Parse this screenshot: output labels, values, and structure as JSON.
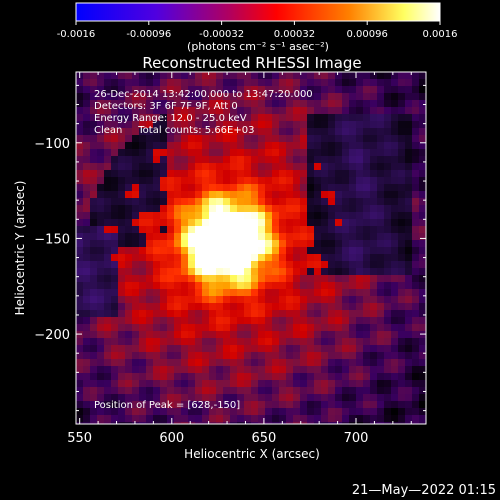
{
  "colorbar": {
    "ticks": [
      "-0.0016",
      "-0.00096",
      "-0.00032",
      "0.00032",
      "0.00096",
      "0.0016"
    ],
    "units": "(photons cm⁻² s⁻¹ asec⁻²)",
    "range": [
      -0.0016,
      0.0016
    ],
    "colors": [
      "#0000ff",
      "#6a00d0",
      "#ff0000",
      "#ff8800",
      "#ffff70",
      "#ffffff"
    ]
  },
  "chart_data": {
    "type": "heatmap",
    "title": "Reconstructed RHESSI Image",
    "xlabel": "Heliocentric X (arcsec)",
    "ylabel": "Heliocentric Y (arcsec)",
    "xlim": [
      548,
      738
    ],
    "ylim": [
      -247,
      -63
    ],
    "xticks": [
      550,
      600,
      650,
      700
    ],
    "yticks": [
      -100,
      -150,
      -200
    ],
    "info_lines": [
      "26-Dec-2014 13:42:00.000 to 13:47:20.000",
      "Detectors: 3F 6F 7F 9F, Att 0",
      "Energy Range: 12.0 - 25.0 keV",
      "Clean     Total counts: 5.66E+03"
    ],
    "peak_label": "Position of Peak = [628,-150]",
    "peak": [
      628,
      -150
    ]
  },
  "footer": {
    "date": "21—May—2022 01:15"
  }
}
